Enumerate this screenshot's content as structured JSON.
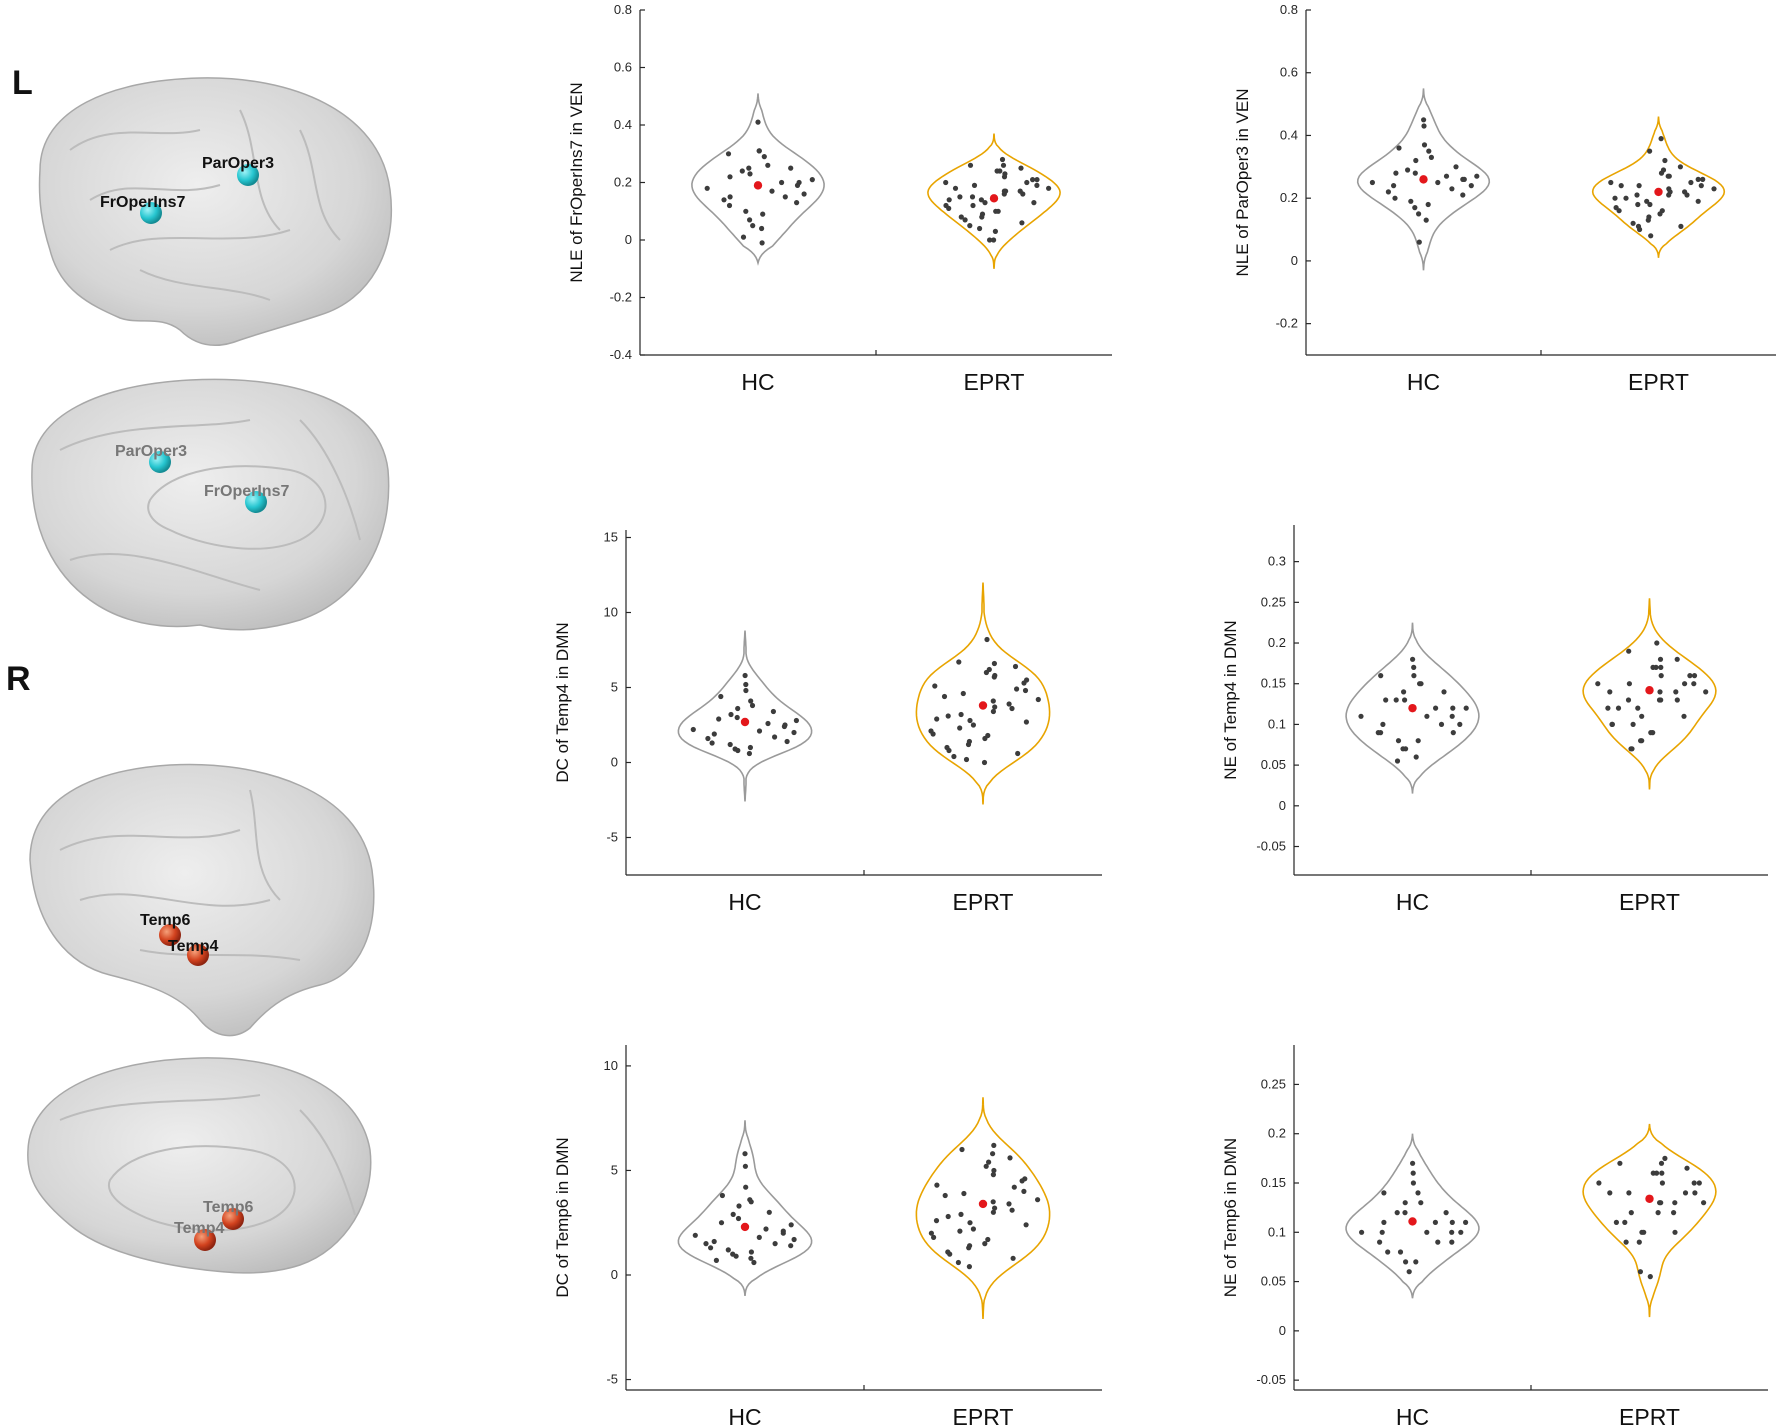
{
  "brain_panel": {
    "left_label": "L",
    "right_label": "R",
    "left_lateral_rois": [
      "ParOper3",
      "FrOperIns7"
    ],
    "left_medial_rois": [
      "ParOper3",
      "FrOperIns7"
    ],
    "right_lateral_rois": [
      "Temp6",
      "Temp4"
    ],
    "right_medial_rois": [
      "Temp6",
      "Temp4"
    ],
    "colors": {
      "cyan_node": "#27c6d0",
      "red_node": "#d2421e",
      "brain": "#d7d7d7"
    }
  },
  "colors": {
    "hc": "#9a9a9a",
    "eprt": "#e8a400",
    "point": "#3c3c3c",
    "mean": "#e3171b"
  },
  "chart_data": [
    {
      "type": "violin",
      "ylabel": "NLE of FrOperIns7 in VEN",
      "categories": [
        "HC",
        "EPRT"
      ],
      "ylim": [
        -0.4,
        0.8
      ],
      "yticks": [
        "-0.4",
        "-0.2",
        "0",
        "0.2",
        "0.4",
        "0.6",
        "0.8"
      ],
      "ytick_values": [
        -0.4,
        -0.2,
        0,
        0.2,
        0.4,
        0.6,
        0.8
      ],
      "series": [
        {
          "name": "HC",
          "range": [
            -0.08,
            0.51
          ],
          "mean": 0.19,
          "points": [
            0.41,
            0.31,
            0.31,
            0.3,
            0.29,
            0.26,
            0.25,
            0.25,
            0.24,
            0.23,
            0.22,
            0.21,
            0.2,
            0.2,
            0.19,
            0.18,
            0.17,
            0.16,
            0.15,
            0.15,
            0.14,
            0.13,
            0.12,
            0.1,
            0.09,
            0.07,
            0.05,
            0.04,
            0.01,
            -0.01
          ]
        },
        {
          "name": "EPRT",
          "range": [
            -0.1,
            0.37
          ],
          "mean": 0.145,
          "points": [
            0.28,
            0.26,
            0.26,
            0.25,
            0.24,
            0.24,
            0.23,
            0.22,
            0.21,
            0.21,
            0.2,
            0.2,
            0.19,
            0.19,
            0.18,
            0.18,
            0.17,
            0.17,
            0.17,
            0.16,
            0.16,
            0.15,
            0.15,
            0.14,
            0.14,
            0.13,
            0.13,
            0.12,
            0.12,
            0.11,
            0.1,
            0.1,
            0.09,
            0.08,
            0.08,
            0.07,
            0.06,
            0.05,
            0.04,
            0.03,
            0.0,
            0.0
          ]
        }
      ]
    },
    {
      "type": "violin",
      "ylabel": "NLE of ParOper3 in VEN",
      "categories": [
        "HC",
        "EPRT"
      ],
      "ylim": [
        -0.3,
        0.8
      ],
      "yticks": [
        "-0.2",
        "0",
        "0.2",
        "0.4",
        "0.6",
        "0.8"
      ],
      "ytick_values": [
        -0.2,
        0,
        0.2,
        0.4,
        0.6,
        0.8
      ],
      "series": [
        {
          "name": "HC",
          "range": [
            -0.03,
            0.55
          ],
          "mean": 0.26,
          "points": [
            0.45,
            0.43,
            0.37,
            0.36,
            0.35,
            0.33,
            0.32,
            0.3,
            0.29,
            0.28,
            0.28,
            0.27,
            0.27,
            0.26,
            0.26,
            0.25,
            0.25,
            0.24,
            0.24,
            0.23,
            0.22,
            0.21,
            0.2,
            0.19,
            0.18,
            0.17,
            0.15,
            0.13,
            0.06
          ]
        },
        {
          "name": "EPRT",
          "range": [
            0.01,
            0.46
          ],
          "mean": 0.22,
          "points": [
            0.39,
            0.35,
            0.32,
            0.3,
            0.29,
            0.28,
            0.27,
            0.27,
            0.26,
            0.26,
            0.25,
            0.25,
            0.24,
            0.24,
            0.24,
            0.23,
            0.23,
            0.22,
            0.22,
            0.21,
            0.21,
            0.21,
            0.2,
            0.2,
            0.19,
            0.19,
            0.18,
            0.18,
            0.17,
            0.16,
            0.16,
            0.15,
            0.14,
            0.13,
            0.12,
            0.11,
            0.11,
            0.1,
            0.08
          ]
        }
      ]
    },
    {
      "type": "violin",
      "ylabel": "DC of Temp4 in DMN",
      "categories": [
        "HC",
        "EPRT"
      ],
      "ylim": [
        -7.5,
        15.5
      ],
      "yticks": [
        "-5",
        "0",
        "5",
        "10",
        "15"
      ],
      "ytick_values": [
        -5,
        0,
        5,
        10,
        15
      ],
      "series": [
        {
          "name": "HC",
          "range": [
            -2.6,
            8.8
          ],
          "mean": 2.7,
          "points": [
            5.8,
            5.2,
            4.8,
            4.4,
            4.1,
            3.8,
            3.6,
            3.4,
            3.2,
            3.0,
            2.9,
            2.8,
            2.6,
            2.5,
            2.4,
            2.2,
            2.1,
            2.0,
            1.9,
            1.7,
            1.6,
            1.4,
            1.3,
            1.2,
            1.0,
            0.9,
            0.8,
            0.6
          ]
        },
        {
          "name": "EPRT",
          "range": [
            -2.8,
            12.0
          ],
          "mean": 3.8,
          "points": [
            8.2,
            6.7,
            6.6,
            6.4,
            6.2,
            6.0,
            5.8,
            5.7,
            5.5,
            5.3,
            5.1,
            4.9,
            4.8,
            4.6,
            4.4,
            4.2,
            4.1,
            3.9,
            3.7,
            3.6,
            3.4,
            3.2,
            3.1,
            2.9,
            2.8,
            2.7,
            2.5,
            2.3,
            2.1,
            1.9,
            1.8,
            1.6,
            1.4,
            1.2,
            1.0,
            0.8,
            0.6,
            0.4,
            0.2,
            0.0
          ]
        }
      ]
    },
    {
      "type": "violin",
      "ylabel": "NE of Temp4 in DMN",
      "categories": [
        "HC",
        "EPRT"
      ],
      "ylim": [
        -0.085,
        0.345
      ],
      "yticks": [
        "-0.05",
        "0",
        "0.05",
        "0.1",
        "0.15",
        "0.2",
        "0.25",
        "0.3"
      ],
      "ytick_values": [
        -0.05,
        0,
        0.05,
        0.1,
        0.15,
        0.2,
        0.25,
        0.3
      ],
      "series": [
        {
          "name": "HC",
          "range": [
            0.015,
            0.225
          ],
          "mean": 0.12,
          "points": [
            0.18,
            0.17,
            0.16,
            0.16,
            0.15,
            0.15,
            0.14,
            0.14,
            0.13,
            0.13,
            0.13,
            0.12,
            0.12,
            0.12,
            0.11,
            0.11,
            0.11,
            0.1,
            0.1,
            0.1,
            0.09,
            0.09,
            0.09,
            0.08,
            0.08,
            0.07,
            0.07,
            0.06,
            0.055
          ]
        },
        {
          "name": "EPRT",
          "range": [
            0.02,
            0.255
          ],
          "mean": 0.142,
          "points": [
            0.2,
            0.19,
            0.18,
            0.18,
            0.17,
            0.17,
            0.17,
            0.16,
            0.16,
            0.16,
            0.15,
            0.15,
            0.15,
            0.15,
            0.14,
            0.14,
            0.14,
            0.14,
            0.13,
            0.13,
            0.13,
            0.13,
            0.12,
            0.12,
            0.12,
            0.11,
            0.11,
            0.1,
            0.1,
            0.1,
            0.09,
            0.09,
            0.08,
            0.08,
            0.07,
            0.07
          ]
        }
      ]
    },
    {
      "type": "violin",
      "ylabel": "DC of Temp6 in DMN",
      "categories": [
        "HC",
        "EPRT"
      ],
      "ylim": [
        -5.5,
        11.0
      ],
      "yticks": [
        "-5",
        "0",
        "5",
        "10"
      ],
      "ytick_values": [
        -5,
        0,
        5,
        10
      ],
      "series": [
        {
          "name": "HC",
          "range": [
            -1.0,
            7.4
          ],
          "mean": 2.3,
          "points": [
            5.8,
            5.2,
            4.2,
            3.8,
            3.6,
            3.5,
            3.3,
            3.0,
            2.9,
            2.7,
            2.5,
            2.4,
            2.2,
            2.1,
            2.0,
            1.9,
            1.8,
            1.7,
            1.6,
            1.5,
            1.5,
            1.4,
            1.3,
            1.2,
            1.1,
            1.0,
            0.9,
            0.8,
            0.7,
            0.6
          ]
        },
        {
          "name": "EPRT",
          "range": [
            -2.1,
            8.5
          ],
          "mean": 3.4,
          "points": [
            6.2,
            6.0,
            5.8,
            5.6,
            5.4,
            5.2,
            5.0,
            4.8,
            4.6,
            4.5,
            4.3,
            4.2,
            4.0,
            3.9,
            3.8,
            3.6,
            3.5,
            3.4,
            3.2,
            3.1,
            3.0,
            2.9,
            2.8,
            2.6,
            2.5,
            2.4,
            2.2,
            2.1,
            2.0,
            1.8,
            1.7,
            1.5,
            1.4,
            1.3,
            1.1,
            1.0,
            0.8,
            0.6,
            0.4
          ]
        }
      ]
    },
    {
      "type": "violin",
      "ylabel": "NE of Temp6 in DMN",
      "categories": [
        "HC",
        "EPRT"
      ],
      "ylim": [
        -0.06,
        0.29
      ],
      "yticks": [
        "-0.05",
        "0",
        "0.05",
        "0.1",
        "0.15",
        "0.2",
        "0.25"
      ],
      "ytick_values": [
        -0.05,
        0,
        0.05,
        0.1,
        0.15,
        0.2,
        0.25
      ],
      "series": [
        {
          "name": "HC",
          "range": [
            0.033,
            0.2
          ],
          "mean": 0.111,
          "points": [
            0.17,
            0.16,
            0.15,
            0.14,
            0.14,
            0.13,
            0.13,
            0.12,
            0.12,
            0.12,
            0.11,
            0.11,
            0.11,
            0.11,
            0.1,
            0.1,
            0.1,
            0.1,
            0.1,
            0.09,
            0.09,
            0.09,
            0.08,
            0.08,
            0.07,
            0.07,
            0.06
          ]
        },
        {
          "name": "EPRT",
          "range": [
            0.014,
            0.21
          ],
          "mean": 0.134,
          "points": [
            0.175,
            0.17,
            0.17,
            0.165,
            0.16,
            0.16,
            0.16,
            0.15,
            0.15,
            0.15,
            0.15,
            0.14,
            0.14,
            0.14,
            0.14,
            0.13,
            0.13,
            0.13,
            0.13,
            0.12,
            0.12,
            0.12,
            0.11,
            0.11,
            0.1,
            0.1,
            0.1,
            0.09,
            0.09,
            0.06,
            0.055
          ]
        }
      ]
    }
  ]
}
